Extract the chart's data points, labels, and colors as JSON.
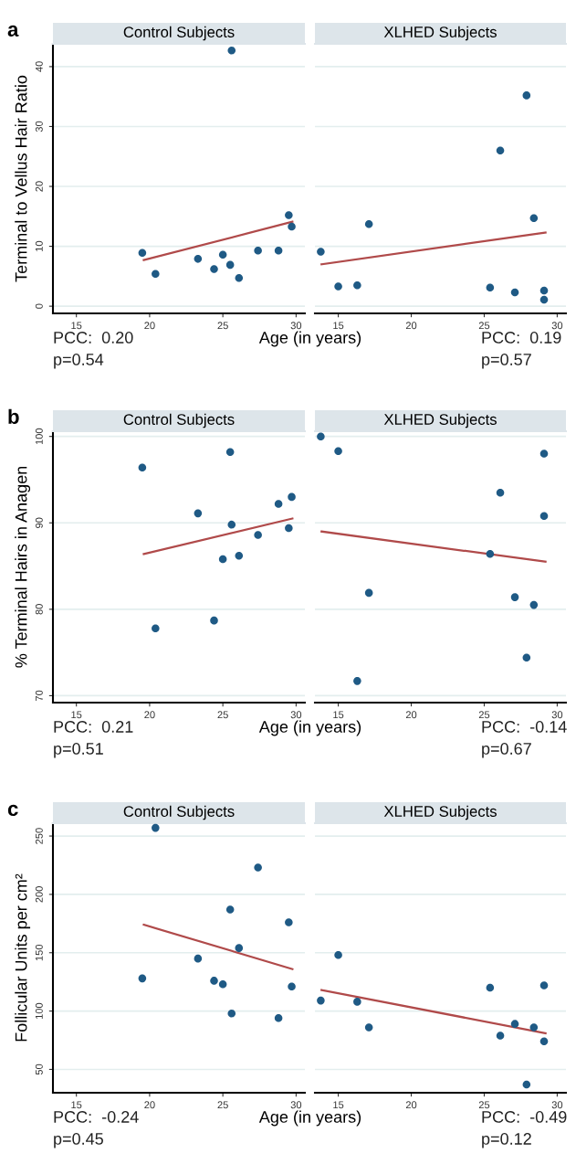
{
  "chart_data": [
    {
      "type": "scatter",
      "title": "Control Subjects",
      "xlabel": "Age (in years)",
      "ylabel": "Terminal to Vellus Hair Ratio",
      "xlim": [
        13.4,
        30.6
      ],
      "xticks": [
        15,
        20,
        25,
        30
      ],
      "ylim": [
        -1.2,
        43.8
      ],
      "yticks": [
        0,
        10,
        20,
        30,
        40
      ],
      "grid": "y",
      "annotations": [
        "a",
        "PCC:  0.20",
        "p=0.54"
      ],
      "series": [
        {
          "type": "scatter",
          "marker": "circle",
          "color": "#1f5a85",
          "x": [
            19.5,
            20.4,
            23.3,
            24.4,
            25.0,
            25.5,
            25.6,
            26.1,
            27.4,
            28.8,
            29.5,
            29.7
          ],
          "values": [
            8.9,
            5.4,
            7.9,
            6.2,
            8.6,
            6.9,
            42.7,
            4.7,
            9.3,
            9.3,
            15.2,
            13.3
          ]
        },
        {
          "type": "line",
          "color": "#b04a4a",
          "x": [
            19.6,
            29.75
          ],
          "values": [
            7.7,
            14.1
          ]
        }
      ]
    },
    {
      "type": "scatter",
      "title": "XLHED Subjects",
      "xlim": [
        13.4,
        30.6
      ],
      "xticks": [
        15,
        20,
        25,
        30
      ],
      "ylim": [
        -1.2,
        43.8
      ],
      "yticks": [
        0,
        10,
        20,
        30,
        40
      ],
      "tick_labels": "x",
      "grid": "y",
      "annotations": [
        "PCC:  0.19",
        "p=0.57"
      ],
      "series": [
        {
          "type": "scatter",
          "marker": "circle",
          "color": "#1f5a85",
          "x": [
            13.8,
            15.0,
            16.3,
            17.1,
            25.4,
            26.1,
            27.1,
            27.9,
            28.4,
            29.1,
            29.1
          ],
          "values": [
            9.1,
            3.3,
            3.5,
            13.7,
            3.1,
            26.0,
            2.3,
            35.2,
            14.7,
            2.6,
            1.1
          ]
        },
        {
          "type": "line",
          "color": "#b04a4a",
          "x": [
            13.85,
            29.2
          ],
          "values": [
            7.0,
            12.3
          ]
        }
      ]
    },
    {
      "type": "scatter",
      "title": "Control Subjects",
      "xlabel": "Age (in years)",
      "ylabel": "% Terminal Hairs in Anagen",
      "xlim": [
        13.4,
        30.6
      ],
      "xticks": [
        15,
        20,
        25,
        30
      ],
      "ylim": [
        69.2,
        100.6
      ],
      "yticks": [
        70,
        80,
        90,
        100
      ],
      "grid": "y",
      "annotations": [
        "b",
        "PCC:  0.21",
        "p=0.51"
      ],
      "series": [
        {
          "type": "scatter",
          "marker": "circle",
          "color": "#1f5a85",
          "x": [
            19.5,
            20.4,
            23.3,
            24.4,
            25.0,
            25.5,
            25.6,
            26.1,
            27.4,
            28.8,
            29.5,
            29.7
          ],
          "values": [
            96.4,
            77.8,
            91.1,
            78.7,
            85.8,
            98.2,
            89.8,
            86.2,
            88.6,
            92.2,
            89.4,
            93.0
          ]
        },
        {
          "type": "line",
          "color": "#b04a4a",
          "x": [
            19.6,
            29.75
          ],
          "values": [
            86.4,
            90.5
          ]
        }
      ]
    },
    {
      "type": "scatter",
      "title": "XLHED Subjects",
      "xlim": [
        13.4,
        30.6
      ],
      "xticks": [
        15,
        20,
        25,
        30
      ],
      "ylim": [
        69.2,
        100.6
      ],
      "yticks": [
        70,
        80,
        90,
        100
      ],
      "tick_labels": "x",
      "grid": "y",
      "annotations": [
        "PCC:  -0.14",
        "p=0.67"
      ],
      "series": [
        {
          "type": "scatter",
          "marker": "circle",
          "color": "#1f5a85",
          "x": [
            13.8,
            15.0,
            16.3,
            17.1,
            25.4,
            26.1,
            27.1,
            27.9,
            28.4,
            29.1,
            29.1
          ],
          "values": [
            100.0,
            98.3,
            71.7,
            81.9,
            86.4,
            93.5,
            81.4,
            74.4,
            80.5,
            98.0,
            90.8
          ]
        },
        {
          "type": "line",
          "color": "#b04a4a",
          "x": [
            13.85,
            29.2
          ],
          "values": [
            89.0,
            85.5
          ]
        }
      ]
    },
    {
      "type": "scatter",
      "title": "Control Subjects",
      "xlabel": "Age (in years)",
      "ylabel": "Follicular Units per cm²",
      "xlim": [
        13.4,
        30.6
      ],
      "xticks": [
        15,
        20,
        25,
        30
      ],
      "ylim": [
        30,
        261
      ],
      "yticks": [
        50,
        100,
        150,
        200,
        250
      ],
      "grid": "y",
      "annotations": [
        "c",
        "PCC:  -0.24",
        "p=0.45"
      ],
      "series": [
        {
          "type": "scatter",
          "marker": "circle",
          "color": "#1f5a85",
          "x": [
            19.5,
            20.4,
            23.3,
            24.4,
            25.0,
            25.5,
            25.6,
            26.1,
            27.4,
            28.8,
            29.5,
            29.7
          ],
          "values": [
            128,
            257,
            145,
            126,
            123,
            187,
            98,
            154,
            223,
            94,
            176,
            121
          ]
        },
        {
          "type": "line",
          "color": "#b04a4a",
          "x": [
            19.6,
            29.75
          ],
          "values": [
            174,
            136
          ]
        }
      ]
    },
    {
      "type": "scatter",
      "title": "XLHED Subjects",
      "xlim": [
        13.4,
        30.6
      ],
      "xticks": [
        15,
        20,
        25,
        30
      ],
      "ylim": [
        30,
        261
      ],
      "yticks": [
        50,
        100,
        150,
        200,
        250
      ],
      "tick_labels": "x",
      "grid": "y",
      "annotations": [
        "PCC:  -0.49",
        "p=0.12"
      ],
      "series": [
        {
          "type": "scatter",
          "marker": "circle",
          "color": "#1f5a85",
          "x": [
            13.8,
            15.0,
            16.3,
            17.1,
            25.4,
            26.1,
            27.1,
            27.9,
            28.4,
            29.1,
            29.1
          ],
          "values": [
            109,
            148,
            108,
            86,
            120,
            79,
            89,
            37,
            86,
            122,
            74
          ]
        },
        {
          "type": "line",
          "color": "#b04a4a",
          "x": [
            13.85,
            29.2
          ],
          "values": [
            118,
            81
          ]
        }
      ]
    }
  ]
}
